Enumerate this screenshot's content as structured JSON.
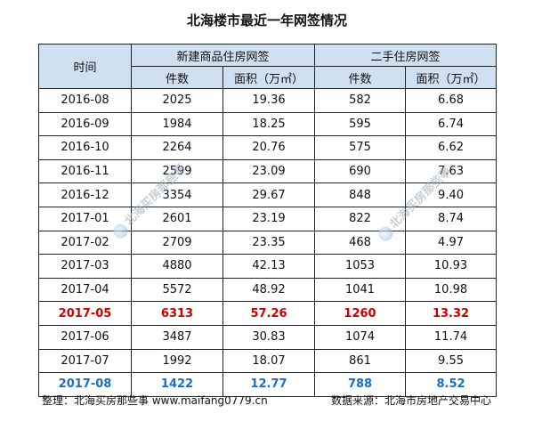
{
  "title": "北海楼市最近一年网签情况",
  "headers": {
    "time": "时间",
    "group_new": "新建商品住房网签",
    "group_second": "二手住房网签",
    "count": "件数",
    "area": "面积（万㎡）"
  },
  "rows": [
    {
      "month": "2016-08",
      "new_count": "2025",
      "new_area": "19.36",
      "sec_count": "582",
      "sec_area": "6.68",
      "highlight": ""
    },
    {
      "month": "2016-09",
      "new_count": "1984",
      "new_area": "18.25",
      "sec_count": "595",
      "sec_area": "6.74",
      "highlight": ""
    },
    {
      "month": "2016-10",
      "new_count": "2264",
      "new_area": "20.76",
      "sec_count": "575",
      "sec_area": "6.62",
      "highlight": ""
    },
    {
      "month": "2016-11",
      "new_count": "2599",
      "new_area": "23.09",
      "sec_count": "690",
      "sec_area": "7.63",
      "highlight": ""
    },
    {
      "month": "2016-12",
      "new_count": "3354",
      "new_area": "29.67",
      "sec_count": "848",
      "sec_area": "9.40",
      "highlight": ""
    },
    {
      "month": "2017-01",
      "new_count": "2601",
      "new_area": "23.19",
      "sec_count": "822",
      "sec_area": "8.74",
      "highlight": ""
    },
    {
      "month": "2017-02",
      "new_count": "2709",
      "new_area": "23.35",
      "sec_count": "468",
      "sec_area": "4.97",
      "highlight": ""
    },
    {
      "month": "2017-03",
      "new_count": "4880",
      "new_area": "42.13",
      "sec_count": "1053",
      "sec_area": "10.93",
      "highlight": ""
    },
    {
      "month": "2017-04",
      "new_count": "5572",
      "new_area": "48.92",
      "sec_count": "1041",
      "sec_area": "10.98",
      "highlight": ""
    },
    {
      "month": "2017-05",
      "new_count": "6313",
      "new_area": "57.26",
      "sec_count": "1260",
      "sec_area": "13.32",
      "highlight": "red"
    },
    {
      "month": "2017-06",
      "new_count": "3487",
      "new_area": "30.83",
      "sec_count": "1074",
      "sec_area": "11.74",
      "highlight": ""
    },
    {
      "month": "2017-07",
      "new_count": "1992",
      "new_area": "18.07",
      "sec_count": "861",
      "sec_area": "9.55",
      "highlight": ""
    },
    {
      "month": "2017-08",
      "new_count": "1422",
      "new_area": "12.77",
      "sec_count": "788",
      "sec_area": "8.52",
      "highlight": "blue"
    }
  ],
  "footer": {
    "left": "整理：北海买房那些事 www.maifang0779.cn",
    "right": "数据来源：北海市房地产交易中心"
  },
  "watermark": "北海买房那些事",
  "colors": {
    "header_bg": "#cfe0f1",
    "highlight_red": "#cc0000",
    "highlight_blue": "#1a6fc4"
  }
}
